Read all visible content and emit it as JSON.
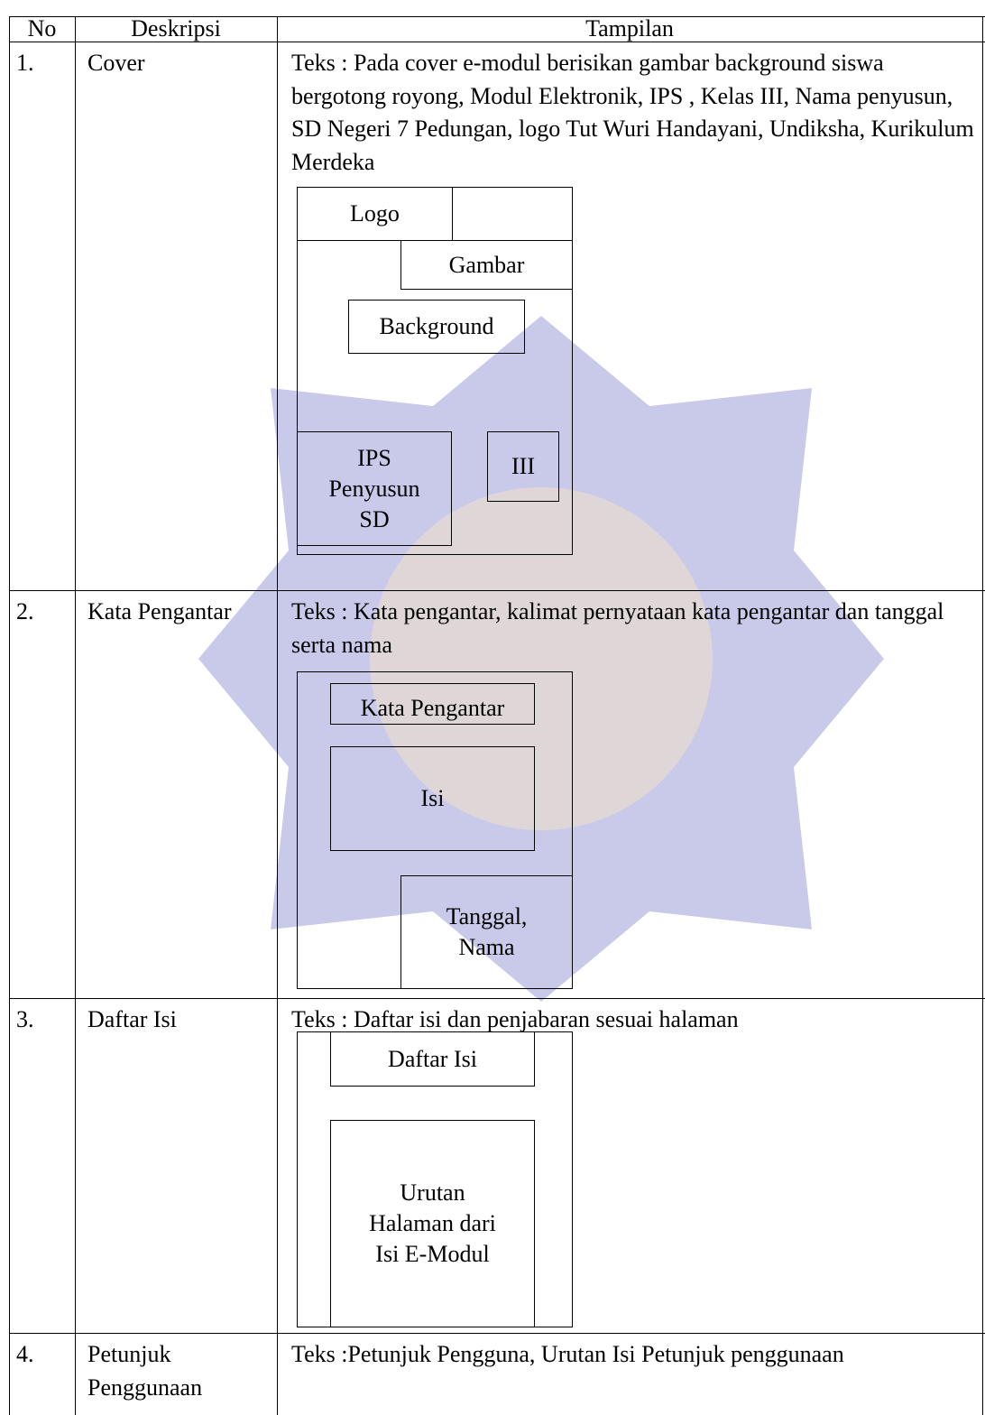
{
  "table": {
    "header": [
      "No",
      "Deskripsi",
      "Tampilan"
    ],
    "rows": [
      {
        "no": "1.",
        "deskripsi": "Cover",
        "teks": "Teks : Pada cover e-modul berisikan gambar background siswa bergotong royong, Modul Elektronik, IPS , Kelas III, Nama penyusun, SD Negeri 7 Pedungan, logo Tut Wuri Handayani, Undiksha, Kurikulum Merdeka",
        "wireframe": [
          [
            "Logo"
          ],
          [
            "Gambar"
          ],
          [
            "Background"
          ],
          [
            "IPS",
            "Penyusun",
            "SD"
          ],
          [
            "III"
          ]
        ]
      },
      {
        "no": "2.",
        "deskripsi": "Kata Pengantar",
        "teks": "Teks : Kata pengantar, kalimat pernyataan kata pengantar dan tanggal serta nama",
        "wireframe": [
          [
            "Kata Pengantar"
          ],
          [
            "Isi"
          ],
          [
            "Tanggal,",
            "Nama"
          ]
        ]
      },
      {
        "no": "3.",
        "deskripsi": "Daftar Isi",
        "teks": "Teks : Daftar isi dan penjabaran sesuai halaman",
        "wireframe": [
          [
            "Daftar Isi"
          ],
          [
            "Urutan",
            "Halaman dari",
            "Isi E-Modul"
          ]
        ]
      },
      {
        "no": "4.",
        "deskripsi": "Petunjuk Penggunaan",
        "teks": "Teks :Petunjuk Pengguna, Urutan Isi Petunjuk penggunaan"
      }
    ]
  }
}
